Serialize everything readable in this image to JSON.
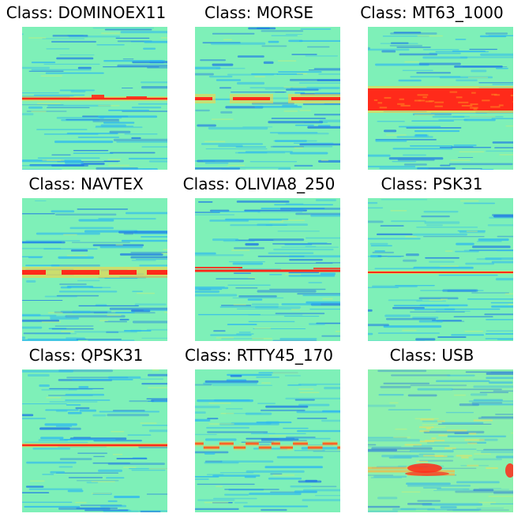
{
  "panels": [
    {
      "title": "Class: DOMINOEX11",
      "signal": "dominoex"
    },
    {
      "title": "Class: MORSE",
      "signal": "morse"
    },
    {
      "title": "Class: MT63_1000",
      "signal": "mt63"
    },
    {
      "title": "Class: NAVTEX",
      "signal": "navtex"
    },
    {
      "title": "Class: OLIVIA8_250",
      "signal": "olivia"
    },
    {
      "title": "Class: PSK31",
      "signal": "psk"
    },
    {
      "title": "Class: QPSK31",
      "signal": "qpsk"
    },
    {
      "title": "Class: RTTY45_170",
      "signal": "rtty"
    },
    {
      "title": "Class: USB",
      "signal": "usb"
    }
  ],
  "colors": {
    "background": "#7ef0b8",
    "band_light": "#2eb8f0",
    "band_dark": "#1e78e6",
    "signal": "#ff2a1a",
    "signal_glow": "#ffd23c"
  }
}
